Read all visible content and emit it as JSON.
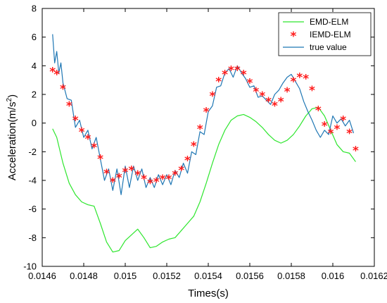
{
  "chart_data": {
    "type": "line",
    "xlabel": "Times(s)",
    "ylabel_main": "Acceleration(m/s",
    "ylabel_sup": "2",
    "ylabel_close": ")",
    "xlim": [
      0.0146,
      0.0162
    ],
    "ylim": [
      -10,
      8
    ],
    "xticks": [
      0.0146,
      0.0148,
      0.015,
      0.0152,
      0.0154,
      0.0156,
      0.0158,
      0.016,
      0.0162
    ],
    "xtick_labels": [
      "0.0146",
      "0.0148",
      "0.015",
      "0.0152",
      "0.0154",
      "0.0156",
      "0.0158",
      "0.016",
      "0.0162"
    ],
    "yticks": [
      -10,
      -8,
      -6,
      -4,
      -2,
      0,
      2,
      4,
      6,
      8
    ],
    "ytick_labels": [
      "-10",
      "-8",
      "-6",
      "-4",
      "-2",
      "0",
      "2",
      "4",
      "6",
      "8"
    ],
    "grid": false,
    "legend_position": "top-right",
    "series": [
      {
        "name": "EMD-ELM",
        "style": "line",
        "color": "#2ee62e",
        "x": [
          0.01465,
          0.01467,
          0.0147,
          0.01473,
          0.01476,
          0.01479,
          0.01482,
          0.01485,
          0.01488,
          0.01491,
          0.01494,
          0.01497,
          0.015,
          0.01503,
          0.01506,
          0.01509,
          0.01512,
          0.01515,
          0.01518,
          0.01521,
          0.01524,
          0.01527,
          0.0153,
          0.01533,
          0.01536,
          0.01539,
          0.01542,
          0.01545,
          0.01548,
          0.01551,
          0.01554,
          0.01557,
          0.0156,
          0.01563,
          0.01566,
          0.01569,
          0.01572,
          0.01575,
          0.01578,
          0.01581,
          0.01584,
          0.01587,
          0.0159,
          0.01593,
          0.01596,
          0.01599,
          0.01602,
          0.01605,
          0.01608,
          0.01611
        ],
        "y": [
          -0.4,
          -1.0,
          -2.8,
          -4.2,
          -5.0,
          -5.5,
          -5.7,
          -5.8,
          -7.0,
          -8.3,
          -9.0,
          -8.9,
          -8.2,
          -7.8,
          -7.4,
          -8.0,
          -8.7,
          -8.6,
          -8.3,
          -8.1,
          -8.0,
          -7.5,
          -7.0,
          -6.5,
          -5.5,
          -4.2,
          -2.8,
          -1.5,
          -0.5,
          0.2,
          0.5,
          0.6,
          0.4,
          0.1,
          -0.3,
          -0.8,
          -1.2,
          -1.4,
          -1.2,
          -0.8,
          -0.2,
          0.5,
          1.0,
          1.1,
          0.5,
          -0.5,
          -1.5,
          -2.0,
          -2.1,
          -2.7
        ]
      },
      {
        "name": "IEMD-ELM",
        "style": "markers",
        "color": "#ff1a1a",
        "x": [
          0.01465,
          0.01467,
          0.0147,
          0.01473,
          0.01476,
          0.01479,
          0.01482,
          0.01485,
          0.01488,
          0.01491,
          0.01494,
          0.01497,
          0.015,
          0.01503,
          0.01506,
          0.01509,
          0.01512,
          0.01515,
          0.01518,
          0.01521,
          0.01524,
          0.01527,
          0.0153,
          0.01533,
          0.01536,
          0.01539,
          0.01542,
          0.01545,
          0.01548,
          0.01551,
          0.01554,
          0.01557,
          0.0156,
          0.01563,
          0.01566,
          0.01569,
          0.01572,
          0.01575,
          0.01578,
          0.01581,
          0.01584,
          0.01587,
          0.0159,
          0.01593,
          0.01596,
          0.01599,
          0.01602,
          0.01605,
          0.01608,
          0.01611
        ],
        "y": [
          3.7,
          3.5,
          2.5,
          1.3,
          0.3,
          -0.5,
          -1.0,
          -1.6,
          -2.4,
          -3.4,
          -4.0,
          -3.7,
          -3.3,
          -3.2,
          -3.5,
          -3.8,
          -4.1,
          -4.0,
          -3.8,
          -3.8,
          -3.5,
          -3.2,
          -2.5,
          -1.5,
          -0.3,
          0.9,
          2.0,
          3.0,
          3.5,
          3.8,
          3.8,
          3.5,
          2.9,
          2.3,
          2.0,
          1.6,
          1.3,
          1.6,
          2.3,
          3.0,
          3.3,
          3.2,
          2.4,
          1.0,
          -0.1,
          -0.6,
          -0.3,
          0.3,
          -0.6,
          -1.8
        ]
      },
      {
        "name": "true value",
        "style": "line",
        "color": "#1f77b4",
        "x": [
          0.01465,
          0.01466,
          0.01467,
          0.01468,
          0.01469,
          0.0147,
          0.01472,
          0.01474,
          0.01476,
          0.01478,
          0.0148,
          0.01482,
          0.01484,
          0.01486,
          0.01488,
          0.0149,
          0.01492,
          0.01494,
          0.01496,
          0.01498,
          0.015,
          0.01502,
          0.01504,
          0.01506,
          0.01508,
          0.0151,
          0.01512,
          0.01514,
          0.01516,
          0.01518,
          0.0152,
          0.01522,
          0.01524,
          0.01526,
          0.01528,
          0.0153,
          0.01532,
          0.01534,
          0.01536,
          0.01538,
          0.0154,
          0.01542,
          0.01544,
          0.01546,
          0.01548,
          0.0155,
          0.01552,
          0.01554,
          0.01556,
          0.01558,
          0.0156,
          0.01562,
          0.01564,
          0.01566,
          0.01568,
          0.0157,
          0.01572,
          0.01574,
          0.01576,
          0.01578,
          0.0158,
          0.01582,
          0.01584,
          0.01586,
          0.01588,
          0.0159,
          0.01592,
          0.01594,
          0.01596,
          0.01598,
          0.016,
          0.01602,
          0.01604,
          0.01606,
          0.01608,
          0.0161
        ],
        "y": [
          6.2,
          4.2,
          5.0,
          3.5,
          4.2,
          2.8,
          1.7,
          1.6,
          -0.3,
          0.2,
          -1.0,
          -0.5,
          -1.8,
          -1.0,
          -2.5,
          -4.0,
          -3.2,
          -4.7,
          -3.2,
          -5.0,
          -3.0,
          -4.5,
          -3.0,
          -4.0,
          -3.2,
          -4.5,
          -3.8,
          -4.5,
          -3.6,
          -4.3,
          -3.6,
          -4.3,
          -3.3,
          -3.8,
          -2.8,
          -3.5,
          -2.0,
          -2.2,
          -0.6,
          -0.8,
          0.8,
          1.2,
          2.5,
          2.6,
          3.5,
          3.8,
          3.2,
          4.0,
          3.5,
          3.1,
          2.5,
          2.6,
          1.8,
          1.9,
          1.6,
          1.3,
          2.0,
          2.3,
          2.8,
          3.2,
          3.4,
          2.9,
          2.4,
          1.5,
          0.8,
          0.2,
          -0.5,
          -1.0,
          -0.5,
          -0.8,
          0.5,
          0.0,
          0.3,
          -0.2,
          0.2,
          -0.7
        ]
      }
    ]
  }
}
